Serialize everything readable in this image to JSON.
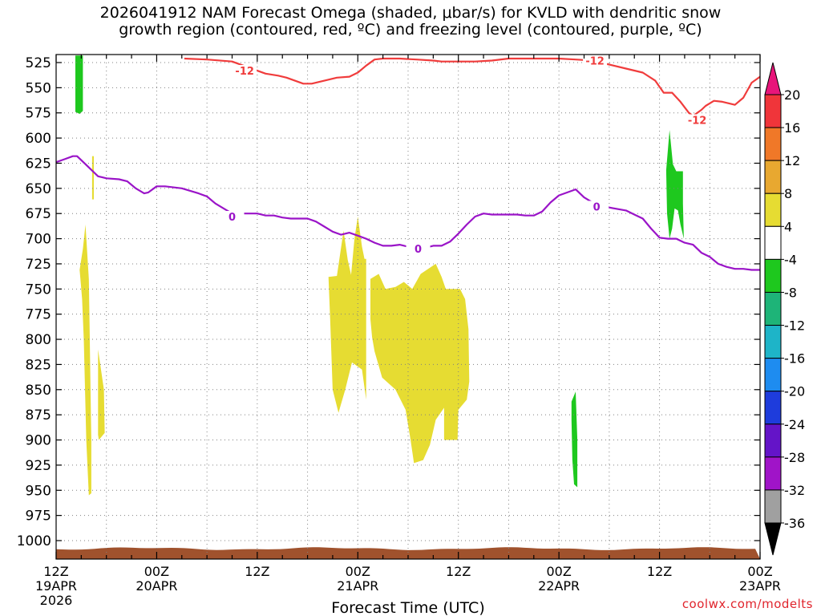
{
  "chart_data": {
    "type": "time-height cross section",
    "title_lines": [
      "2026041912 NAM Forecast Omega (shaded, μbar/s) for KVLD with dendritic snow",
      "growth region (contoured, red, ºC) and freezing level (contoured, purple, ºC)"
    ],
    "xlabel": "Forecast Time (UTC)",
    "ylabel": "",
    "x_range_hours": [
      0,
      84
    ],
    "x_ticks": [
      {
        "hour": 0,
        "label": "12Z",
        "date": "19APR",
        "year": "2026"
      },
      {
        "hour": 12,
        "label": "00Z",
        "date": "20APR"
      },
      {
        "hour": 24,
        "label": "12Z"
      },
      {
        "hour": 36,
        "label": "00Z",
        "date": "21APR"
      },
      {
        "hour": 48,
        "label": "12Z"
      },
      {
        "hour": 60,
        "label": "00Z",
        "date": "22APR"
      },
      {
        "hour": 72,
        "label": "12Z"
      },
      {
        "hour": 84,
        "label": "00Z",
        "date": "23APR"
      }
    ],
    "y_axis": "pressure (mb)",
    "y_ticks": [
      525,
      550,
      575,
      600,
      625,
      650,
      675,
      700,
      725,
      750,
      775,
      800,
      825,
      850,
      875,
      900,
      925,
      950,
      975,
      1000
    ],
    "colorbar": {
      "labels": [
        "20",
        "16",
        "12",
        "8",
        "4",
        "-4",
        "-8",
        "-12",
        "-16",
        "-20",
        "-24",
        "-28",
        "-32",
        "-36"
      ],
      "bins": [
        {
          "range": ">20",
          "color": "#e8157a"
        },
        {
          "range": "16 to 20",
          "color": "#f0353a"
        },
        {
          "range": "12 to 16",
          "color": "#f07828"
        },
        {
          "range": "8 to 12",
          "color": "#e8a830"
        },
        {
          "range": "4 to 8",
          "color": "#e6dc32"
        },
        {
          "range": "-4 to 4",
          "color": "#ffffff"
        },
        {
          "range": "-8 to -4",
          "color": "#1ec81e"
        },
        {
          "range": "-12 to -8",
          "color": "#1eb478"
        },
        {
          "range": "-16 to -12",
          "color": "#1eb4c8"
        },
        {
          "range": "-20 to -16",
          "color": "#1e8cf0"
        },
        {
          "range": "-24 to -20",
          "color": "#1e3cdc"
        },
        {
          "range": "-28 to -24",
          "color": "#6414c8"
        },
        {
          "range": "-32 to -28",
          "color": "#a014c8"
        },
        {
          "range": "-36 to -32",
          "color": "#a0a0a0"
        },
        {
          "range": "<-36",
          "color": "#000000"
        }
      ]
    },
    "contours": [
      {
        "name": "-12",
        "color": "#f03c3c",
        "label_points": [
          [
            22.5,
            533
          ],
          [
            64.3,
            523
          ],
          [
            76.5,
            582
          ]
        ],
        "points": [
          [
            15.3,
            521
          ],
          [
            18,
            522
          ],
          [
            21,
            524
          ],
          [
            23,
            530
          ],
          [
            25,
            536
          ],
          [
            26.5,
            538
          ],
          [
            27.5,
            540
          ],
          [
            29.5,
            546
          ],
          [
            30.5,
            546
          ],
          [
            32,
            543
          ],
          [
            33.5,
            540
          ],
          [
            35,
            539
          ],
          [
            36,
            535
          ],
          [
            37,
            528
          ],
          [
            38,
            522
          ],
          [
            39,
            521
          ],
          [
            41,
            521
          ],
          [
            43,
            522
          ],
          [
            45,
            523
          ],
          [
            46,
            524
          ],
          [
            48,
            524
          ],
          [
            50,
            524
          ],
          [
            52,
            523
          ],
          [
            54,
            521
          ],
          [
            56,
            521
          ],
          [
            58,
            521
          ],
          [
            60,
            521
          ],
          [
            62,
            522
          ],
          [
            64,
            523
          ],
          [
            66,
            527
          ],
          [
            68,
            531
          ],
          [
            70,
            535
          ],
          [
            71.5,
            543
          ],
          [
            72.5,
            555
          ],
          [
            73.5,
            555
          ],
          [
            74.5,
            564
          ],
          [
            75.5,
            575
          ],
          [
            76,
            578
          ],
          [
            77,
            572
          ],
          [
            77.5,
            568
          ],
          [
            78.5,
            563
          ],
          [
            79.5,
            564
          ],
          [
            81,
            567
          ],
          [
            82,
            560
          ],
          [
            83,
            545
          ],
          [
            84,
            539
          ]
        ]
      },
      {
        "name": "0",
        "color": "#9a14c8",
        "label_points": [
          [
            21,
            678
          ],
          [
            43.2,
            710
          ],
          [
            64.5,
            668
          ]
        ],
        "points": [
          [
            0,
            624
          ],
          [
            1,
            621
          ],
          [
            2,
            618
          ],
          [
            2.5,
            618
          ],
          [
            3.5,
            626
          ],
          [
            5,
            638
          ],
          [
            6,
            640
          ],
          [
            7.5,
            641
          ],
          [
            8.5,
            643
          ],
          [
            9.5,
            650
          ],
          [
            10.5,
            655
          ],
          [
            11,
            654
          ],
          [
            12,
            648
          ],
          [
            13,
            648
          ],
          [
            15,
            650
          ],
          [
            17,
            655
          ],
          [
            18,
            658
          ],
          [
            19,
            665
          ],
          [
            20,
            670
          ],
          [
            21,
            675
          ],
          [
            22,
            675
          ],
          [
            23,
            675
          ],
          [
            24,
            675
          ],
          [
            25,
            677
          ],
          [
            26,
            677
          ],
          [
            27,
            679
          ],
          [
            28,
            680
          ],
          [
            29,
            680
          ],
          [
            30,
            680
          ],
          [
            31,
            683
          ],
          [
            32,
            688
          ],
          [
            33,
            693
          ],
          [
            34,
            696
          ],
          [
            35,
            694
          ],
          [
            36,
            697
          ],
          [
            37,
            700
          ],
          [
            38,
            704
          ],
          [
            39,
            707
          ],
          [
            40,
            707
          ],
          [
            41,
            706
          ],
          [
            42,
            708
          ],
          [
            43,
            708
          ],
          [
            44,
            709
          ],
          [
            45,
            707
          ],
          [
            46,
            707
          ],
          [
            47,
            703
          ],
          [
            48,
            695
          ],
          [
            49,
            686
          ],
          [
            50,
            678
          ],
          [
            51,
            675
          ],
          [
            52,
            676
          ],
          [
            53,
            676
          ],
          [
            55,
            676
          ],
          [
            56,
            677
          ],
          [
            57,
            677
          ],
          [
            58,
            673
          ],
          [
            59,
            664
          ],
          [
            60,
            657
          ],
          [
            61,
            654
          ],
          [
            62,
            651
          ],
          [
            63,
            659
          ],
          [
            64,
            664
          ],
          [
            66,
            669
          ],
          [
            68,
            672
          ],
          [
            69,
            676
          ],
          [
            70,
            680
          ],
          [
            71,
            690
          ],
          [
            72,
            699
          ],
          [
            73,
            700
          ],
          [
            74,
            700
          ],
          [
            75,
            704
          ],
          [
            76,
            706
          ],
          [
            77,
            714
          ],
          [
            78,
            718
          ],
          [
            79,
            725
          ],
          [
            80,
            728
          ],
          [
            81,
            730
          ],
          [
            82,
            730
          ],
          [
            83,
            731
          ],
          [
            84,
            731
          ]
        ]
      }
    ],
    "shaded_regions": [
      {
        "name": "omega -8 to -4 (1)",
        "bin": "-8 to -4",
        "color": "#1ec81e",
        "points": [
          [
            2.3,
            518
          ],
          [
            3.2,
            518
          ],
          [
            3.2,
            573
          ],
          [
            2.8,
            576
          ],
          [
            2.3,
            574
          ]
        ]
      },
      {
        "name": "omega 4 to 8 (1)",
        "bin": "4 to 8",
        "color": "#e6dc32",
        "points": [
          [
            4.3,
            618
          ],
          [
            4.5,
            618
          ],
          [
            4.5,
            661
          ],
          [
            4.3,
            661
          ]
        ]
      },
      {
        "name": "omega 4 to 8 (2)",
        "bin": "4 to 8",
        "color": "#e6dc32",
        "points": [
          [
            2.8,
            731
          ],
          [
            3.2,
            710
          ],
          [
            3.5,
            686
          ],
          [
            3.9,
            740
          ],
          [
            4.0,
            790
          ],
          [
            4.1,
            850
          ],
          [
            4.2,
            900
          ],
          [
            4.2,
            953
          ],
          [
            3.9,
            955
          ],
          [
            3.6,
            900
          ],
          [
            3.3,
            800
          ],
          [
            3.1,
            760
          ],
          [
            2.9,
            740
          ]
        ]
      },
      {
        "name": "omega 4 to 8 (3)",
        "bin": "4 to 8",
        "color": "#e6dc32",
        "points": [
          [
            5.0,
            810
          ],
          [
            5.7,
            850
          ],
          [
            5.8,
            893
          ],
          [
            5.1,
            900
          ],
          [
            5.0,
            895
          ]
        ]
      },
      {
        "name": "omega 4 to 8 (4)",
        "bin": "4 to 8",
        "color": "#e6dc32",
        "points": [
          [
            32.5,
            738
          ],
          [
            33.5,
            737
          ],
          [
            34.3,
            692
          ],
          [
            34.8,
            721
          ],
          [
            35.2,
            736
          ],
          [
            35.6,
            700
          ],
          [
            36.0,
            678
          ],
          [
            36.5,
            708
          ],
          [
            36.8,
            720
          ],
          [
            37,
            720
          ],
          [
            37,
            860
          ],
          [
            36.5,
            830
          ],
          [
            35.3,
            823
          ],
          [
            34.5,
            850
          ],
          [
            33.7,
            873
          ],
          [
            33.0,
            850
          ],
          [
            32.7,
            780
          ]
        ]
      },
      {
        "name": "omega 4 to 8 (5)",
        "bin": "4 to 8",
        "color": "#e6dc32",
        "points": [
          [
            37.5,
            740
          ],
          [
            38.5,
            735
          ],
          [
            39.3,
            750
          ],
          [
            40.5,
            748
          ],
          [
            41.5,
            743
          ],
          [
            42.5,
            750
          ],
          [
            43.5,
            735
          ],
          [
            45.3,
            725
          ],
          [
            46,
            738
          ],
          [
            46.5,
            750
          ],
          [
            48.2,
            750
          ],
          [
            48.8,
            760
          ],
          [
            49.2,
            790
          ],
          [
            49.3,
            842
          ],
          [
            49,
            860
          ],
          [
            48,
            870
          ],
          [
            47.9,
            900
          ],
          [
            46.3,
            900
          ],
          [
            46.3,
            868
          ],
          [
            45.3,
            880
          ],
          [
            44.6,
            905
          ],
          [
            43.8,
            920
          ],
          [
            42.7,
            923
          ],
          [
            42.3,
            900
          ],
          [
            41.7,
            870
          ],
          [
            40.5,
            850
          ],
          [
            38.9,
            838
          ],
          [
            38,
            812
          ],
          [
            37.7,
            798
          ],
          [
            37.5,
            780
          ]
        ]
      },
      {
        "name": "omega -8 to -4 (2)",
        "bin": "-8 to -4",
        "color": "#1ec81e",
        "points": [
          [
            61.5,
            862
          ],
          [
            62.0,
            852
          ],
          [
            62.2,
            900
          ],
          [
            62.2,
            947
          ],
          [
            61.8,
            944
          ],
          [
            61.6,
            920
          ],
          [
            61.5,
            880
          ]
        ]
      },
      {
        "name": "omega -8 to -4 (3)",
        "bin": "-8 to -4",
        "color": "#1ec81e",
        "points": [
          [
            72.8,
            632
          ],
          [
            73.2,
            592
          ],
          [
            73.6,
            626
          ],
          [
            74.0,
            633
          ],
          [
            74.8,
            633
          ],
          [
            74.8,
            665
          ],
          [
            74.9,
            700
          ],
          [
            74.5,
            686
          ],
          [
            74.2,
            672
          ],
          [
            73.8,
            670
          ],
          [
            73.5,
            690
          ],
          [
            73.2,
            700
          ],
          [
            72.9,
            675
          ]
        ]
      }
    ],
    "terrain_color": "#a0522d",
    "terrain_top_mb": 1008
  },
  "credit": "coolwx.com/modelts"
}
